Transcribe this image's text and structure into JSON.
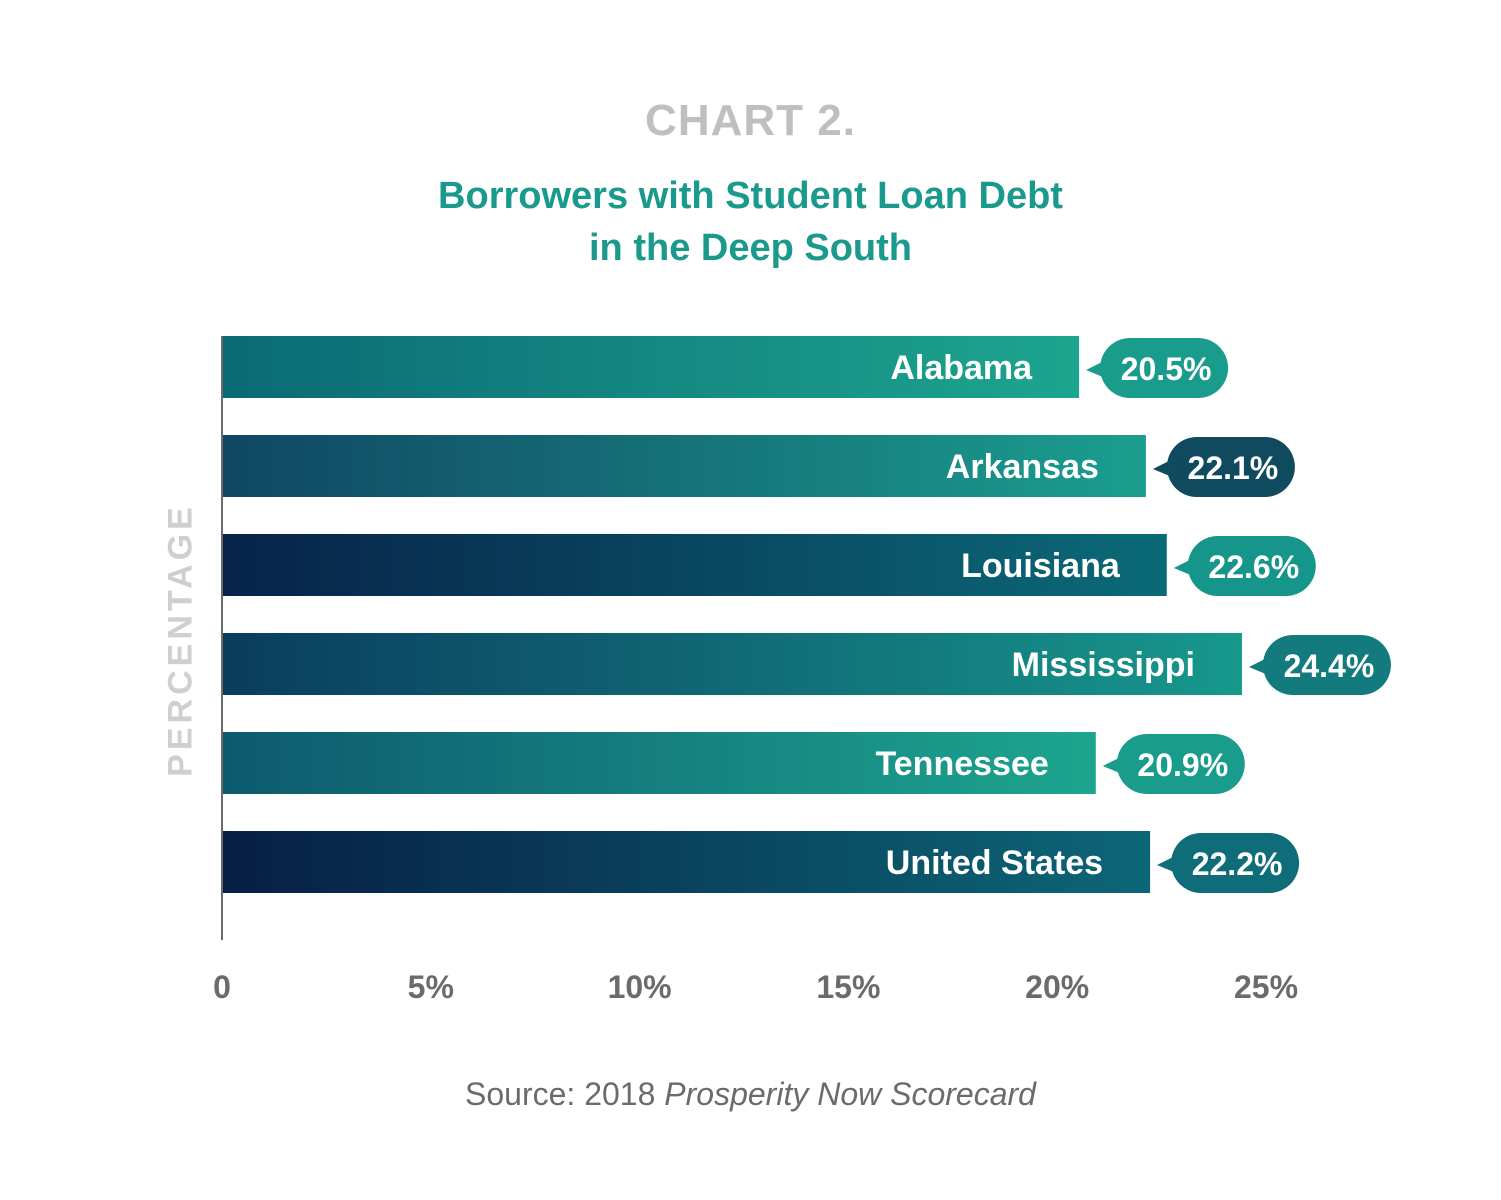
{
  "header": {
    "label": "CHART 2.",
    "title_line1": "Borrowers with Student Loan Debt",
    "title_line2": "in the Deep South"
  },
  "source": {
    "prefix": "Source: 2018",
    "italic": "Prosperity Now Scorecard"
  },
  "chart_data": {
    "type": "bar",
    "orientation": "horizontal",
    "ylabel": "PERCENTAGE",
    "xlabel": "",
    "categories": [
      "Alabama",
      "Arkansas",
      "Louisiana",
      "Mississippi",
      "Tennessee",
      "United States"
    ],
    "values": [
      20.5,
      22.1,
      22.6,
      24.4,
      20.9,
      22.2
    ],
    "value_labels": [
      "20.5%",
      "22.1%",
      "22.6%",
      "24.4%",
      "20.9%",
      "22.2%"
    ],
    "xlim": [
      0,
      25
    ],
    "xticks": [
      0,
      5,
      10,
      15,
      20,
      25
    ],
    "xtick_labels": [
      "0",
      "5%",
      "10%",
      "15%",
      "20%",
      "25%"
    ],
    "grid": false,
    "legend": "none",
    "colors": {
      "dark_navy": "#0b2447",
      "teal_mid": "#07707a",
      "teal_light": "#1da58f",
      "axis_text": "#6b6b6b",
      "callout_dark": "#0f4a5e"
    },
    "bar_styles": [
      {
        "from": "#0b6a74",
        "to": "#1da58f",
        "callout": "#199c8c"
      },
      {
        "from": "#104763",
        "to": "#1b9e8e",
        "callout": "#0f4a5e"
      },
      {
        "from": "#072349",
        "to": "#0b6a77",
        "callout": "#16958b"
      },
      {
        "from": "#0a3c5e",
        "to": "#17988c",
        "callout": "#137a7e"
      },
      {
        "from": "#0d5a6e",
        "to": "#1da58f",
        "callout": "#199c8c"
      },
      {
        "from": "#071f43",
        "to": "#0c6677",
        "callout": "#0e6d78"
      }
    ]
  }
}
